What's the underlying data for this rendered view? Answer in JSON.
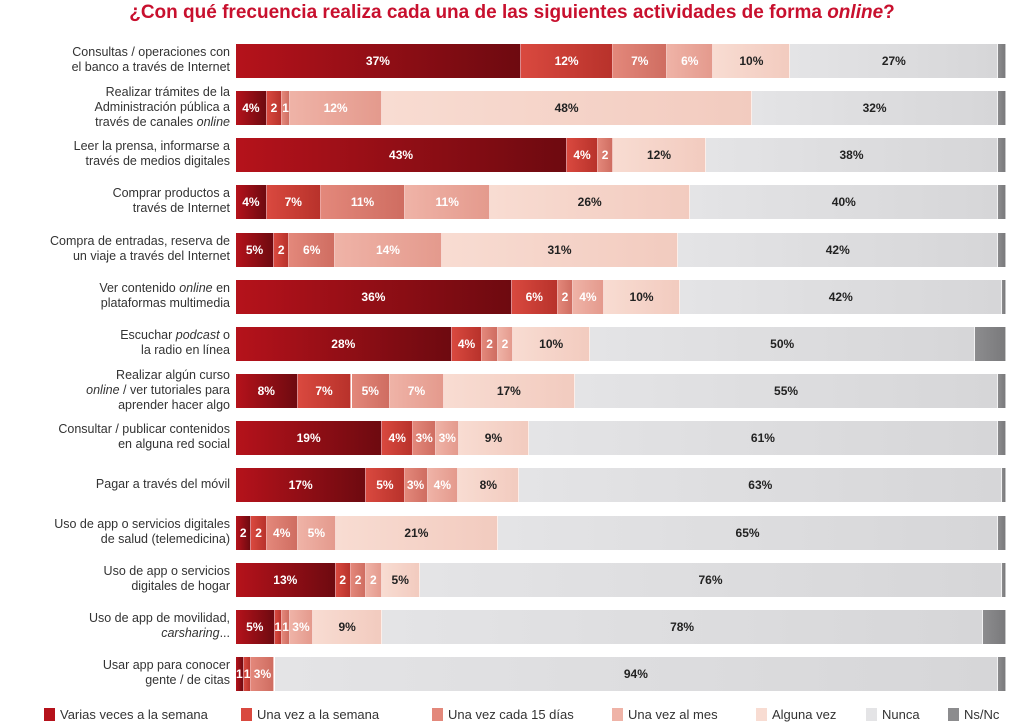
{
  "title": {
    "pre": "¿Con qué frecuencia realiza cada una de las siguientes actividades de forma ",
    "italic": "online",
    "post": "?"
  },
  "chart_data": {
    "type": "bar",
    "orientation": "horizontal",
    "stacked": true,
    "unit": "%",
    "legend_placement": "bottom",
    "categories": [
      [
        [
          "Consultas / operaciones con"
        ],
        [
          "el banco a través de Internet"
        ]
      ],
      [
        [
          "Realizar trámites de la"
        ],
        [
          "Administración pública a"
        ],
        [
          "través de canales ",
          {
            "i": "online"
          }
        ]
      ],
      [
        [
          "Leer la prensa, informarse a"
        ],
        [
          "través de medios digitales"
        ]
      ],
      [
        [
          "Comprar productos a"
        ],
        [
          "través de Internet"
        ]
      ],
      [
        [
          "Compra de entradas, reserva de"
        ],
        [
          "un viaje a través del Internet"
        ]
      ],
      [
        [
          "Ver contenido ",
          {
            "i": "online"
          },
          " en"
        ],
        [
          "plataformas multimedia"
        ]
      ],
      [
        [
          "Escuchar ",
          {
            "i": "podcast"
          },
          " o"
        ],
        [
          "la radio en línea"
        ]
      ],
      [
        [
          "Realizar algún curso"
        ],
        [
          {
            "i": "online"
          },
          " / ver tutoriales para"
        ],
        [
          "aprender hacer algo"
        ]
      ],
      [
        [
          "Consultar / publicar contenidos"
        ],
        [
          "en alguna red social"
        ]
      ],
      [
        [
          "Pagar a través del móvil"
        ]
      ],
      [
        [
          "Uso de app o servicios digitales"
        ],
        [
          "de salud (telemedicina)"
        ]
      ],
      [
        [
          "Uso de app o servicios"
        ],
        [
          "digitales de hogar"
        ]
      ],
      [
        [
          "Uso de app de movilidad,"
        ],
        [
          {
            "i": "carsharing"
          },
          "..."
        ]
      ],
      [
        [
          "Usar app para conocer"
        ],
        [
          "gente / de citas"
        ]
      ]
    ],
    "series": [
      {
        "name": "Varias veces a la semana",
        "color": "#b5121b",
        "text": "#ffffff",
        "values": [
          37,
          4,
          43,
          4,
          5,
          36,
          28,
          8,
          19,
          17,
          2,
          13,
          5,
          1
        ],
        "labels": [
          "37%",
          "4%",
          "43%",
          "4%",
          "5%",
          "36%",
          "28%",
          "8%",
          "19%",
          "17%",
          "2",
          "13%",
          "5%",
          "1"
        ]
      },
      {
        "name": "Una vez a la semana",
        "color": "#d9493f",
        "text": "#ffffff",
        "values": [
          12,
          2,
          4,
          7,
          2,
          6,
          4,
          7,
          4,
          5,
          2,
          2,
          1,
          1
        ],
        "labels": [
          "12%",
          "2",
          "4%",
          "7%",
          "2",
          "6%",
          "4%",
          "7%",
          "4%",
          "5%",
          "2",
          "2",
          "1",
          "1"
        ]
      },
      {
        "name": "Una vez cada 15 días",
        "color": "#e3887b",
        "text": "#ffffff",
        "values": [
          7,
          1,
          2,
          11,
          6,
          2,
          2,
          5,
          3,
          3,
          4,
          2,
          1,
          3
        ],
        "labels": [
          "7%",
          "1",
          "2",
          "11%",
          "6%",
          "2",
          "2",
          "5%",
          "3%",
          "3%",
          "4%",
          "2",
          "1",
          "3%"
        ]
      },
      {
        "name": "Una vez al mes",
        "color": "#efb3a7",
        "text": "#ffffff",
        "values": [
          6,
          12,
          0,
          11,
          14,
          4,
          2,
          7,
          3,
          4,
          5,
          2,
          3,
          0
        ],
        "labels": [
          "6%",
          "12%",
          "",
          "11%",
          "14%",
          "4%",
          "2",
          "7%",
          "3%",
          "4%",
          "5%",
          "2",
          "3%",
          ""
        ]
      },
      {
        "name": "Alguna vez",
        "color": "#f8dcd2",
        "text": "#222222",
        "values": [
          10,
          48,
          12,
          26,
          31,
          10,
          10,
          17,
          9,
          8,
          21,
          5,
          9,
          0
        ],
        "labels": [
          "10%",
          "48%",
          "12%",
          "26%",
          "31%",
          "10%",
          "10%",
          "17%",
          "9%",
          "8%",
          "21%",
          "5%",
          "9%",
          ""
        ]
      },
      {
        "name": "Nunca",
        "color": "#e4e4e6",
        "text": "#222222",
        "values": [
          27,
          32,
          38,
          40,
          42,
          42,
          50,
          55,
          61,
          63,
          65,
          76,
          78,
          94
        ],
        "labels": [
          "27%",
          "32%",
          "38%",
          "40%",
          "42%",
          "42%",
          "50%",
          "55%",
          "61%",
          "63%",
          "65%",
          "76%",
          "78%",
          "94%"
        ]
      },
      {
        "name": "Ns/Nc",
        "color": "#8c8c8e",
        "text": "#ffffff",
        "values": [
          1,
          1,
          1,
          1,
          1,
          0.5,
          4,
          1,
          1,
          0.5,
          1,
          0.5,
          3,
          1
        ],
        "labels": [
          "",
          "",
          "",
          "",
          "",
          "",
          "",
          "",
          "",
          "",
          "",
          "",
          "",
          ""
        ]
      }
    ]
  }
}
